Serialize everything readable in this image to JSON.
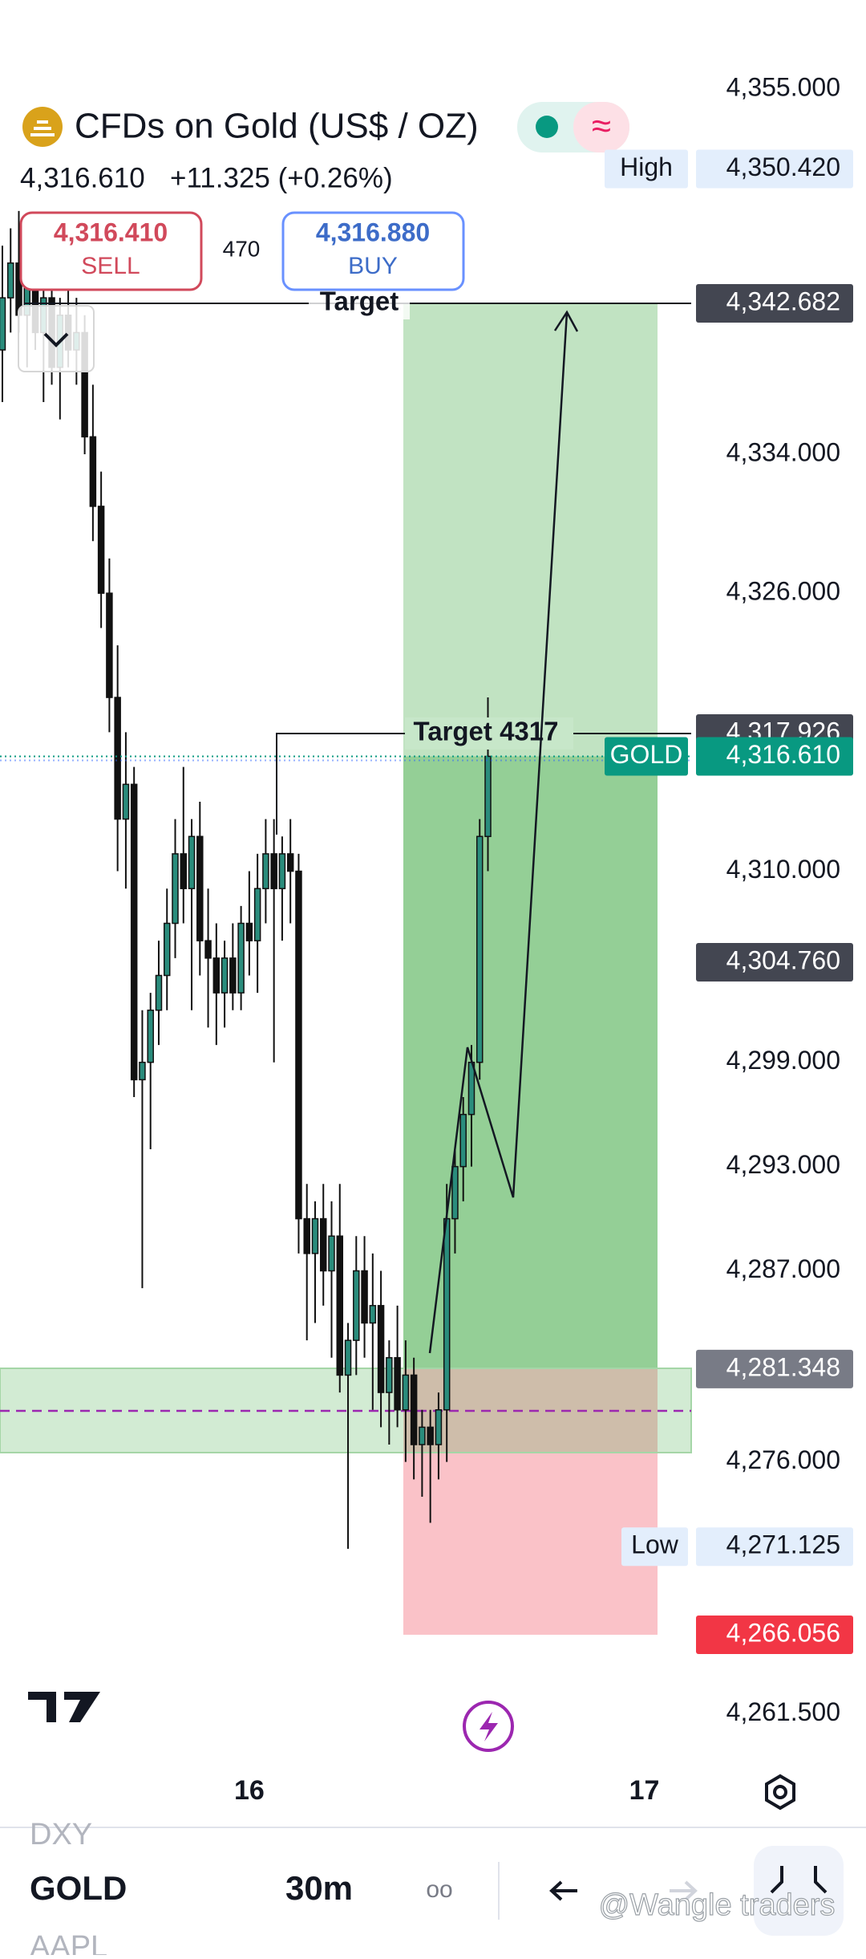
{
  "header": {
    "title": "CFDs on Gold (US$ / OZ)",
    "price": "4,316.610",
    "change": "+11.325 (+0.26%)",
    "sell_price": "4,316.410",
    "sell_label": "SELL",
    "spread": "470",
    "buy_price": "4,316.880",
    "buy_label": "BUY"
  },
  "chart_data": {
    "type": "candlestick",
    "x": [
      0,
      1,
      2,
      3,
      4,
      5,
      6,
      7,
      8,
      9,
      10,
      11,
      12,
      13,
      14,
      15,
      16,
      17,
      18,
      19,
      20,
      21,
      22,
      23,
      24,
      25,
      26,
      27,
      28,
      29,
      30,
      31,
      32,
      33,
      34,
      35,
      36,
      37,
      38,
      39,
      40,
      41,
      42,
      43,
      44,
      45,
      46,
      47,
      48,
      49,
      50,
      51,
      52,
      53,
      54,
      55,
      56,
      57,
      58,
      59
    ],
    "open": [
      4340,
      4343,
      4345,
      4342,
      4344,
      4341,
      4343,
      4339,
      4342,
      4340,
      4341,
      4335,
      4331,
      4326,
      4320,
      4313,
      4315,
      4298,
      4299,
      4302,
      4304,
      4307,
      4311,
      4309,
      4312,
      4306,
      4305,
      4303,
      4305,
      4303,
      4307,
      4306,
      4309,
      4311,
      4309,
      4311,
      4310,
      4290,
      4288,
      4290,
      4287,
      4289,
      4281,
      4283,
      4287,
      4284,
      4285,
      4280,
      4282,
      4279,
      4281,
      4277,
      4278,
      4277,
      4279,
      4290,
      4293,
      4296,
      4299,
      4312
    ],
    "high": [
      4346,
      4347,
      4348,
      4345,
      4346,
      4344,
      4345,
      4343,
      4344,
      4343,
      4342,
      4338,
      4333,
      4328,
      4323,
      4318,
      4316,
      4302,
      4303,
      4306,
      4309,
      4313,
      4316,
      4313,
      4314,
      4309,
      4307,
      4306,
      4307,
      4308,
      4310,
      4311,
      4313,
      4313,
      4312,
      4313,
      4311,
      4292,
      4291,
      4292,
      4291,
      4292,
      4284,
      4289,
      4289,
      4288,
      4287,
      4283,
      4285,
      4283,
      4282,
      4279,
      4279,
      4280,
      4292,
      4294,
      4297,
      4300,
      4313,
      4320
    ],
    "low": [
      4337,
      4341,
      4341,
      4339,
      4340,
      4337,
      4338,
      4336,
      4339,
      4338,
      4334,
      4329,
      4324,
      4318,
      4310,
      4309,
      4297,
      4286,
      4294,
      4300,
      4302,
      4305,
      4307,
      4302,
      4304,
      4301,
      4300,
      4301,
      4302,
      4302,
      4304,
      4303,
      4307,
      4299,
      4306,
      4307,
      4288,
      4283,
      4284,
      4285,
      4282,
      4280,
      4271,
      4281,
      4282,
      4279,
      4278,
      4277,
      4278,
      4276,
      4275,
      4274,
      4272.5,
      4275,
      4276,
      4288,
      4291,
      4293,
      4298,
      4310
    ],
    "close": [
      4343,
      4345,
      4342,
      4344,
      4341,
      4343,
      4339,
      4342,
      4340,
      4341,
      4335,
      4331,
      4326,
      4320,
      4313,
      4315,
      4298,
      4299,
      4302,
      4304,
      4307,
      4311,
      4309,
      4312,
      4306,
      4305,
      4303,
      4305,
      4303,
      4307,
      4306,
      4309,
      4311,
      4309,
      4311,
      4310,
      4290,
      4288,
      4290,
      4287,
      4289,
      4281,
      4283,
      4287,
      4284,
      4285,
      4280,
      4282,
      4279,
      4281,
      4277,
      4278,
      4277,
      4279,
      4290,
      4293,
      4296,
      4299,
      4312,
      4316.61
    ],
    "up_color": "#2a8c7c",
    "down_color": "#111111",
    "xlim": [
      -0.29,
      83.7
    ],
    "xticks": [
      {
        "value": 30,
        "label": "16"
      },
      {
        "value": 78,
        "label": "17"
      }
    ],
    "ylim": [
      4259.45,
      4360.14
    ],
    "yticks": [
      {
        "value": 4355,
        "label": "4,355.000"
      },
      {
        "value": 4334,
        "label": "4,334.000"
      },
      {
        "value": 4326,
        "label": "4,326.000"
      },
      {
        "value": 4310,
        "label": "4,310.000"
      },
      {
        "value": 4299,
        "label": "4,299.000"
      },
      {
        "value": 4293,
        "label": "4,293.000"
      },
      {
        "value": 4287,
        "label": "4,287.000"
      },
      {
        "value": 4276,
        "label": "4,276.000"
      },
      {
        "value": 4261.5,
        "label": "4,261.500"
      }
    ],
    "price_labels": [
      {
        "value": 4350.42,
        "label": "4,350.420",
        "color": "#e3eefc",
        "text_color": "#131722",
        "tag": "High"
      },
      {
        "value": 4342.682,
        "label": "4,342.682",
        "color": "#434651",
        "text_color": "#ffffff"
      },
      {
        "value": 4317.926,
        "label": "4,317.926",
        "color": "#434651",
        "text_color": "#ffffff"
      },
      {
        "value": 4316.61,
        "label": "4,316.610",
        "color": "#089981",
        "text_color": "#ffffff",
        "tag": "GOLD"
      },
      {
        "value": 4304.76,
        "label": "4,304.760",
        "color": "#434651",
        "text_color": "#ffffff"
      },
      {
        "value": 4281.348,
        "label": "4,281.348",
        "color": "#787b86",
        "text_color": "#ffffff"
      },
      {
        "value": 4271.125,
        "label": "4,271.125",
        "color": "#e3eefc",
        "text_color": "#131722",
        "tag": "Low"
      },
      {
        "value": 4266.056,
        "label": "4,266.056",
        "color": "#f23645",
        "text_color": "#ffffff"
      }
    ],
    "annotations": [
      "Target",
      "Target 4317"
    ]
  },
  "footer": {
    "symbol_prev": "DXY",
    "symbol": "GOLD",
    "interval": "30m",
    "symbol_next": "AAPL",
    "watermark": "@Wangle traders"
  }
}
